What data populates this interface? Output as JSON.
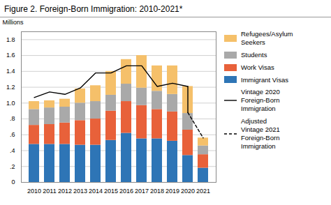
{
  "chart_data": {
    "type": "bar",
    "title": "Figure 2. Foreign-Born Immigration: 2010-2021*",
    "ylabel": "Millions",
    "categories": [
      "2010",
      "2011",
      "2012",
      "2013",
      "2014",
      "2015",
      "2016",
      "2017",
      "2018",
      "2019",
      "2020",
      "2021"
    ],
    "stacked": true,
    "grid": true,
    "legend": "right",
    "series": [
      {
        "name": "Immigrant Visas",
        "type": "bar",
        "color": "#2e75b6",
        "values": [
          0.48,
          0.48,
          0.48,
          0.47,
          0.47,
          0.53,
          0.62,
          0.55,
          0.55,
          0.52,
          0.34,
          0.18
        ]
      },
      {
        "name": "Work Visas",
        "type": "bar",
        "color": "#e8613a",
        "values": [
          0.24,
          0.25,
          0.27,
          0.31,
          0.33,
          0.37,
          0.4,
          0.42,
          0.37,
          0.37,
          0.32,
          0.17
        ]
      },
      {
        "name": "Students",
        "type": "bar",
        "color": "#a9a9a9",
        "values": [
          0.2,
          0.21,
          0.2,
          0.22,
          0.22,
          0.2,
          0.22,
          0.22,
          0.23,
          0.22,
          0.21,
          0.11
        ]
      },
      {
        "name": "Refugees/Asylum\nSeekers",
        "type": "bar",
        "color": "#f5c06a",
        "values": [
          0.1,
          0.09,
          0.1,
          0.18,
          0.2,
          0.3,
          0.31,
          0.41,
          0.32,
          0.36,
          0.34,
          0.1
        ]
      },
      {
        "name": "Vintage 2020\nForeign-Born\nImmigration",
        "type": "line",
        "color": "#000000",
        "line_style": "solid",
        "values": [
          1.07,
          1.14,
          1.11,
          1.19,
          1.38,
          1.38,
          1.47,
          1.47,
          1.21,
          1.25,
          1.21,
          null
        ]
      },
      {
        "name": "Adjusted\nVintage 2021\nForeign-Born\nImmigration",
        "type": "line",
        "color": "#000000",
        "line_style": "dashed",
        "values": [
          null,
          null,
          null,
          null,
          null,
          null,
          null,
          null,
          null,
          null,
          0.88,
          0.56
        ]
      }
    ],
    "ylim": [
      0,
      1.9
    ],
    "yticks": [
      0,
      {
        "value": 0.2,
        "label": ".2"
      },
      {
        "value": 0.4,
        "label": ".4"
      },
      {
        "value": 0.6,
        "label": ".6"
      },
      {
        "value": 0.8,
        "label": ".8"
      },
      {
        "value": 1.0,
        "label": "1.0"
      },
      1.2,
      1.4,
      1.6,
      1.8
    ]
  }
}
